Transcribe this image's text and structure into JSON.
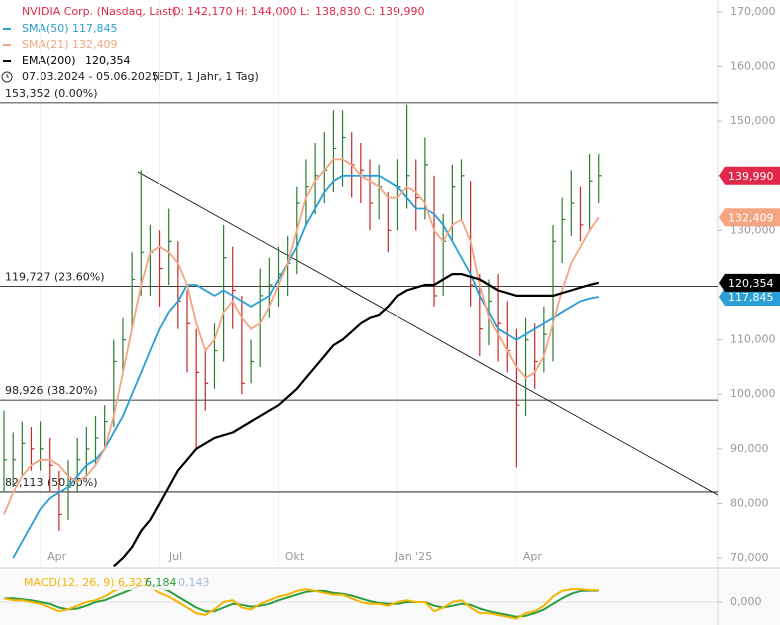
{
  "chart_data": {
    "type": "candlestick",
    "title": "NVIDIA Corp. (Nasdaq, Last)",
    "ohlc": [
      {
        "name": "O:",
        "value": "142,170"
      },
      {
        "name": "H:",
        "value": "144,000"
      },
      {
        "name": "L:",
        "value": "138,830"
      },
      {
        "name": "C:",
        "value": "139,990"
      }
    ],
    "period": "07.03.2024 - 05.06.2025",
    "period_note": "(EDT, 1 Jahr, 1 Tag)",
    "categories": [
      null,
      null,
      null,
      null,
      "Apr",
      null,
      null,
      null,
      null,
      null,
      null,
      null,
      null,
      null,
      null,
      null,
      null,
      "Jul",
      null,
      null,
      null,
      null,
      null,
      null,
      null,
      null,
      null,
      null,
      null,
      null,
      "Okt",
      null,
      null,
      null,
      null,
      null,
      null,
      null,
      null,
      null,
      null,
      null,
      null,
      "Jan '25",
      null,
      null,
      null,
      null,
      null,
      null,
      null,
      null,
      null,
      null,
      null,
      null,
      "Apr",
      null,
      null,
      null,
      null,
      null,
      null,
      null,
      null,
      null
    ],
    "price": {
      "close": [
        88,
        88,
        91,
        90,
        90,
        87,
        78,
        83,
        88,
        90,
        92,
        95,
        106,
        110,
        121,
        126,
        126,
        123,
        128,
        117,
        113,
        104,
        102,
        108,
        125,
        119,
        102,
        106,
        118,
        120,
        122,
        124,
        135,
        138,
        140,
        141,
        145,
        147,
        142,
        141,
        135,
        138,
        130,
        138,
        140,
        136,
        142,
        118,
        128,
        138,
        140,
        120,
        112,
        117,
        113,
        108,
        98,
        110,
        106,
        111,
        128,
        132,
        135,
        131,
        139,
        140
      ],
      "high": [
        97,
        93,
        95,
        94,
        95,
        92,
        86,
        88,
        92,
        94,
        96,
        98,
        110,
        114,
        126,
        141,
        131,
        130,
        134,
        128,
        119,
        112,
        108,
        113,
        131,
        127,
        118,
        110,
        123,
        125,
        127,
        129,
        138,
        143,
        146,
        148,
        152,
        152,
        148,
        146,
        143,
        142,
        137,
        143,
        153,
        143,
        147,
        140,
        133,
        142,
        143,
        139,
        122,
        121,
        122,
        117,
        112,
        114,
        113,
        116,
        131,
        136,
        141,
        138,
        144,
        144
      ],
      "low": [
        82,
        83,
        85,
        86,
        86,
        82,
        75,
        77,
        82,
        85,
        87,
        90,
        94,
        104,
        112,
        118,
        118,
        116,
        120,
        112,
        104,
        90,
        97,
        101,
        106,
        112,
        100,
        102,
        105,
        114,
        116,
        118,
        122,
        131,
        133,
        135,
        137,
        138,
        136,
        135,
        130,
        132,
        126,
        130,
        134,
        130,
        132,
        116,
        118,
        128,
        132,
        116,
        107,
        109,
        106,
        104,
        86.6,
        96,
        101,
        104,
        106,
        124,
        129,
        128,
        130,
        135
      ]
    },
    "series": [
      {
        "name": "SMA(50)",
        "color": "#2a9fd6",
        "last_label": "117,845",
        "values": [
          null,
          70,
          73,
          76,
          79,
          81,
          82,
          83,
          85,
          87,
          88,
          90,
          93,
          96,
          100,
          104,
          108,
          112,
          115,
          117,
          120,
          120,
          119,
          118,
          119,
          118,
          117,
          116,
          117,
          118,
          121,
          124,
          127,
          131,
          134,
          137,
          139,
          140,
          140,
          140,
          140,
          140,
          139,
          138,
          136,
          134,
          134,
          133,
          131,
          128,
          125,
          122,
          118,
          115,
          112,
          111,
          110,
          111,
          112,
          113,
          114,
          115,
          116,
          117,
          117.5,
          117.8
        ]
      },
      {
        "name": "SMA(21)",
        "color": "#f4a582",
        "last_label": "132,409",
        "values": [
          78,
          82,
          85,
          87,
          88,
          88,
          87,
          85,
          84,
          85,
          87,
          90,
          96,
          104,
          112,
          120,
          126,
          127,
          126,
          124,
          120,
          113,
          108,
          110,
          115,
          117,
          114,
          112,
          113,
          116,
          120,
          124,
          130,
          136,
          139,
          141,
          143,
          143,
          142,
          140,
          139,
          138,
          136,
          136,
          138,
          137,
          135,
          130,
          128,
          131,
          132,
          128,
          120,
          114,
          111,
          108,
          105,
          103,
          104,
          107,
          113,
          119,
          124,
          127,
          130,
          132.4
        ]
      },
      {
        "name": "EMA(200)",
        "color": "#000000",
        "last_label": "120,354",
        "values": [
          null,
          null,
          null,
          null,
          null,
          null,
          null,
          null,
          null,
          null,
          null,
          null,
          68.5,
          70,
          72,
          75,
          77,
          80,
          83,
          86,
          88,
          90,
          91,
          92,
          92.5,
          93,
          94,
          95,
          96,
          97,
          98,
          99.5,
          101,
          103,
          105,
          107,
          109,
          110,
          111.5,
          113,
          114,
          114.5,
          116,
          118,
          119,
          119.5,
          120,
          120,
          121,
          122,
          122,
          121.5,
          121,
          120,
          119,
          118.5,
          118,
          118,
          118,
          118,
          118,
          118.5,
          119,
          119.5,
          120,
          120.4
        ]
      }
    ],
    "price_color": "#e0294a",
    "levels": [
      {
        "value": 153.352,
        "label": "153,352 (0.00%)"
      },
      {
        "value": 119.727,
        "label": "119,727 (23.60%)"
      },
      {
        "value": 98.926,
        "label": "98,926 (38.20%)"
      },
      {
        "value": 82.113,
        "label": "82,113 (50.00%)"
      }
    ],
    "ylim": [
      68,
      172
    ],
    "yticks": [
      {
        "value": 70,
        "label": "70,000"
      },
      {
        "value": 80,
        "label": "80,000"
      },
      {
        "value": 90,
        "label": "90,000"
      },
      {
        "value": 100,
        "label": "100,000"
      },
      {
        "value": 110,
        "label": "110,000"
      },
      {
        "value": 120,
        "label": "120,000"
      },
      {
        "value": 130,
        "label": "130,000"
      },
      {
        "value": 140,
        "label": "140,000"
      },
      {
        "value": 150,
        "label": "150,000"
      },
      {
        "value": 160,
        "label": "160,000"
      },
      {
        "value": 170,
        "label": "170,000"
      }
    ],
    "macd": {
      "name": "MACD(12, 26, 9)",
      "macd_label": "6,327",
      "signal_label": "6,184",
      "hist_label": "0,143",
      "macd_color": "#f5b400",
      "signal_color": "#2a9d3f",
      "macd": [
        2,
        1,
        1,
        0,
        -1,
        -3,
        -5,
        -4,
        -2,
        0,
        1,
        3,
        6,
        8,
        10,
        10,
        8,
        5,
        3,
        0,
        -3,
        -6,
        -7,
        -4,
        0,
        1,
        -3,
        -4,
        -1,
        1,
        3,
        4,
        6,
        7,
        6,
        5,
        4,
        4,
        2,
        0,
        -1,
        -1,
        -2,
        0,
        1,
        0,
        0,
        -5,
        -3,
        0,
        1,
        -3,
        -6,
        -6,
        -7,
        -8,
        -9,
        -6,
        -5,
        -2,
        3,
        6,
        7,
        7,
        6.5,
        6.327
      ],
      "signal": [
        2,
        2,
        1.5,
        1,
        0,
        -1,
        -3,
        -4,
        -3.5,
        -2,
        0,
        1,
        3,
        5,
        7,
        9,
        9,
        8,
        6,
        3,
        0,
        -3,
        -5,
        -5,
        -3,
        -1,
        -1.5,
        -2.5,
        -2,
        -1,
        1,
        2.5,
        4,
        5.5,
        6,
        6,
        5,
        4.5,
        3.5,
        2,
        0.5,
        -0.5,
        -1,
        -1,
        0,
        0,
        0,
        -2,
        -3,
        -2,
        -1,
        -1.5,
        -3.5,
        -5,
        -6,
        -7,
        -8,
        -7.5,
        -6,
        -4,
        -1,
        2,
        4.5,
        6,
        6.2,
        6.184
      ],
      "ylim": [
        -13,
        13
      ],
      "yticks": [
        {
          "value": 0,
          "label": "0,000"
        }
      ]
    }
  }
}
